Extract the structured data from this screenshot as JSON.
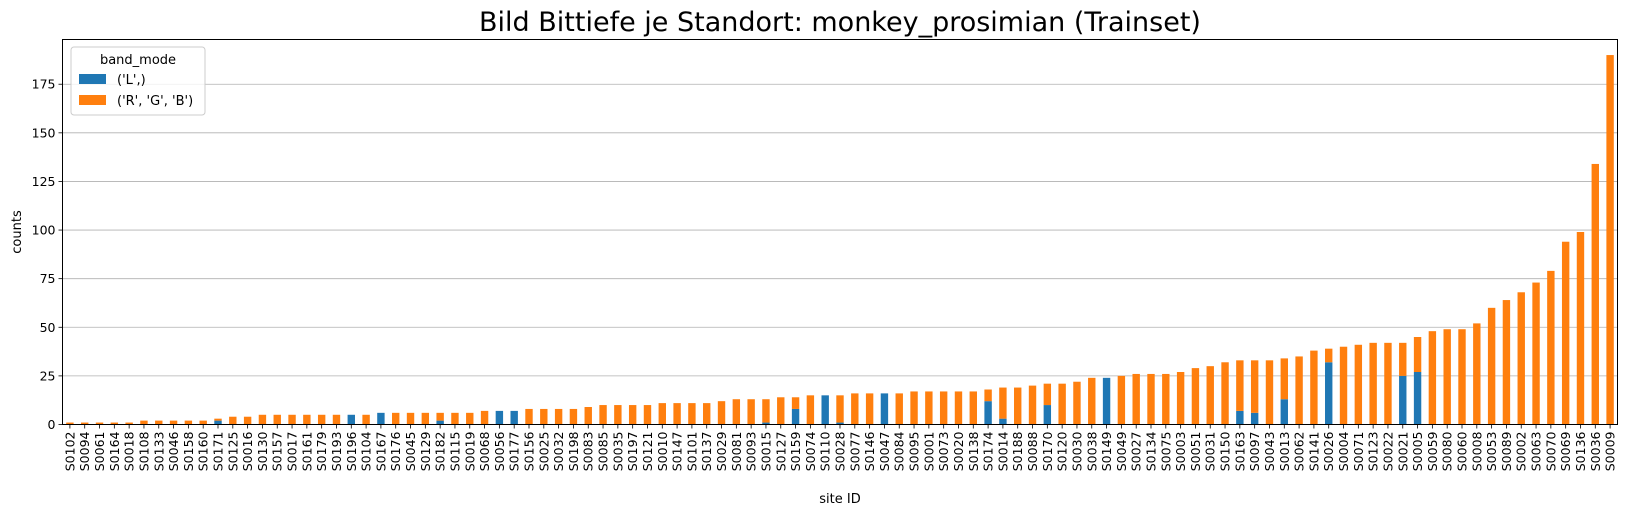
{
  "chart_data": {
    "type": "bar",
    "stacked": true,
    "title": "Bild Bittiefe je Standort: monkey_prosimian (Trainset)",
    "xlabel": "site ID",
    "ylabel": "counts",
    "ylim": [
      0,
      198
    ],
    "yticks": [
      0,
      25,
      50,
      75,
      100,
      125,
      150,
      175
    ],
    "grid": "y",
    "legend": {
      "title": "band_mode",
      "placement": "top-left"
    },
    "categories": [
      "S0102",
      "S0094",
      "S0061",
      "S0164",
      "S0018",
      "S0108",
      "S0133",
      "S0046",
      "S0158",
      "S0160",
      "S0171",
      "S0125",
      "S0016",
      "S0130",
      "S0157",
      "S0017",
      "S0161",
      "S0179",
      "S0193",
      "S0196",
      "S0104",
      "S0167",
      "S0176",
      "S0045",
      "S0129",
      "S0182",
      "S0115",
      "S0019",
      "S0068",
      "S0056",
      "S0177",
      "S0156",
      "S0025",
      "S0032",
      "S0198",
      "S0083",
      "S0085",
      "S0035",
      "S0197",
      "S0121",
      "S0010",
      "S0147",
      "S0101",
      "S0137",
      "S0029",
      "S0081",
      "S0093",
      "S0015",
      "S0127",
      "S0159",
      "S0074",
      "S0110",
      "S0028",
      "S0077",
      "S0146",
      "S0047",
      "S0084",
      "S0095",
      "S0001",
      "S0073",
      "S0020",
      "S0138",
      "S0174",
      "S0014",
      "S0188",
      "S0088",
      "S0170",
      "S0120",
      "S0030",
      "S0038",
      "S0149",
      "S0049",
      "S0027",
      "S0134",
      "S0075",
      "S0003",
      "S0051",
      "S0031",
      "S0150",
      "S0163",
      "S0097",
      "S0043",
      "S0013",
      "S0062",
      "S0141",
      "S0026",
      "S0004",
      "S0071",
      "S0123",
      "S0022",
      "S0021",
      "S0005",
      "S0059",
      "S0080",
      "S0060",
      "S0008",
      "S0053",
      "S0089",
      "S0002",
      "S0063",
      "S0070",
      "S0069",
      "S0136",
      "S0036",
      "S0009"
    ],
    "series": [
      {
        "name": "('L',)",
        "color": "#1f77b4",
        "values": [
          0,
          0,
          0,
          0,
          0,
          0,
          0,
          0,
          0,
          0,
          2,
          0,
          0,
          0,
          0,
          0,
          0,
          0,
          0,
          5,
          0,
          6,
          0,
          0,
          0,
          2,
          0,
          0,
          0,
          7,
          7,
          0,
          0,
          0,
          0,
          0,
          0,
          0,
          0,
          0,
          0,
          0,
          0,
          0,
          0,
          0,
          0,
          1,
          0,
          8,
          0,
          15,
          1,
          0,
          0,
          16,
          0,
          0,
          0,
          0,
          0,
          0,
          12,
          3,
          0,
          0,
          10,
          0,
          0,
          0,
          24,
          0,
          0,
          0,
          0,
          0,
          0,
          0,
          0,
          7,
          6,
          0,
          13,
          0,
          0,
          32,
          0,
          0,
          0,
          0,
          25,
          27,
          0,
          0,
          0,
          0,
          0,
          0,
          0,
          0,
          0,
          0,
          0,
          0,
          0
        ]
      },
      {
        "name": "('R', 'G', 'B')",
        "color": "#ff7f0e",
        "values": [
          1,
          1,
          1,
          1,
          1,
          2,
          2,
          2,
          2,
          2,
          1,
          4,
          4,
          5,
          5,
          5,
          5,
          5,
          5,
          0,
          5,
          0,
          6,
          6,
          6,
          4,
          6,
          6,
          7,
          0,
          0,
          8,
          8,
          8,
          8,
          9,
          10,
          10,
          10,
          10,
          11,
          11,
          11,
          11,
          12,
          13,
          13,
          12,
          14,
          6,
          15,
          0,
          14,
          16,
          16,
          0,
          16,
          17,
          17,
          17,
          17,
          17,
          6,
          16,
          19,
          20,
          11,
          21,
          22,
          24,
          0,
          25,
          26,
          26,
          26,
          27,
          29,
          30,
          32,
          26,
          27,
          33,
          21,
          35,
          38,
          7,
          40,
          41,
          42,
          42,
          17,
          18,
          48,
          49,
          49,
          52,
          60,
          64,
          68,
          73,
          79,
          94,
          99,
          134,
          190
        ]
      }
    ]
  }
}
